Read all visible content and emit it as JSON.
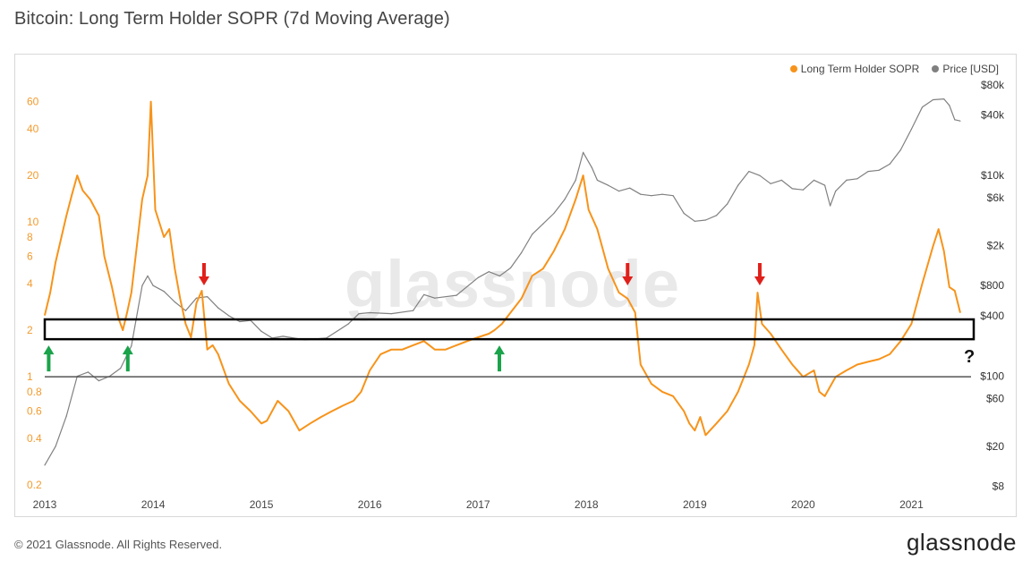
{
  "title": "Bitcoin: Long Term Holder SOPR (7d Moving Average)",
  "footer": {
    "copyright": "© 2021 Glassnode. All Rights Reserved.",
    "brand": "glassnode"
  },
  "watermark": "glassnode",
  "chart_data": {
    "type": "line",
    "title": "Bitcoin: Long Term Holder SOPR (7d Moving Average)",
    "legend_position": "top-right",
    "grid": false,
    "x_ticks": [
      "2013",
      "2014",
      "2015",
      "2016",
      "2017",
      "2018",
      "2019",
      "2020",
      "2021"
    ],
    "x_range": [
      2013.0,
      2021.55
    ],
    "y_left": {
      "scale": "log",
      "range": [
        0.18,
        80
      ],
      "tick_labels": [
        "0.2",
        "0.4",
        "0.6",
        "0.8",
        "1",
        "2",
        "4",
        "6",
        "8",
        "10",
        "20",
        "40",
        "60"
      ],
      "tick_values": [
        0.2,
        0.4,
        0.6,
        0.8,
        1,
        2,
        4,
        6,
        8,
        10,
        20,
        40,
        60
      ]
    },
    "y_right": {
      "scale": "log",
      "range": [
        7,
        85000
      ],
      "tick_labels": [
        "$8",
        "$20",
        "$60",
        "$100",
        "$400",
        "$800",
        "$2k",
        "$6k",
        "$10k",
        "$40k",
        "$80k"
      ],
      "tick_values": [
        8,
        20,
        60,
        100,
        400,
        800,
        2000,
        6000,
        10000,
        40000,
        80000
      ]
    },
    "series": [
      {
        "name": "Long Term Holder SOPR",
        "color": "#f7931a",
        "axis": "left",
        "x": [
          2013.0,
          2013.05,
          2013.1,
          2013.2,
          2013.25,
          2013.3,
          2013.35,
          2013.42,
          2013.5,
          2013.55,
          2013.62,
          2013.68,
          2013.72,
          2013.76,
          2013.8,
          2013.85,
          2013.9,
          2013.95,
          2013.98,
          2014.02,
          2014.1,
          2014.15,
          2014.2,
          2014.25,
          2014.3,
          2014.35,
          2014.4,
          2014.45,
          2014.5,
          2014.55,
          2014.6,
          2014.7,
          2014.8,
          2014.9,
          2015.0,
          2015.05,
          2015.15,
          2015.25,
          2015.35,
          2015.45,
          2015.55,
          2015.65,
          2015.75,
          2015.85,
          2015.92,
          2016.0,
          2016.1,
          2016.2,
          2016.3,
          2016.4,
          2016.5,
          2016.55,
          2016.6,
          2016.7,
          2016.8,
          2016.9,
          2017.0,
          2017.1,
          2017.15,
          2017.22,
          2017.3,
          2017.4,
          2017.5,
          2017.6,
          2017.7,
          2017.8,
          2017.9,
          2017.97,
          2018.02,
          2018.1,
          2018.2,
          2018.3,
          2018.38,
          2018.45,
          2018.5,
          2018.6,
          2018.7,
          2018.8,
          2018.9,
          2018.95,
          2019.0,
          2019.05,
          2019.1,
          2019.2,
          2019.3,
          2019.4,
          2019.5,
          2019.55,
          2019.58,
          2019.62,
          2019.7,
          2019.8,
          2019.9,
          2020.0,
          2020.1,
          2020.15,
          2020.2,
          2020.3,
          2020.4,
          2020.5,
          2020.6,
          2020.7,
          2020.8,
          2020.9,
          2021.0,
          2021.1,
          2021.2,
          2021.25,
          2021.3,
          2021.35,
          2021.4,
          2021.45
        ],
        "y": [
          2.5,
          3.5,
          5.5,
          11,
          15,
          20,
          16,
          14,
          11,
          6,
          3.8,
          2.4,
          2.0,
          2.6,
          3.5,
          7,
          14,
          20,
          60,
          12,
          8,
          9,
          5,
          3.2,
          2.2,
          1.8,
          3.0,
          3.6,
          1.5,
          1.6,
          1.4,
          0.9,
          0.7,
          0.6,
          0.5,
          0.52,
          0.7,
          0.6,
          0.45,
          0.5,
          0.55,
          0.6,
          0.65,
          0.7,
          0.8,
          1.1,
          1.4,
          1.5,
          1.5,
          1.6,
          1.7,
          1.6,
          1.5,
          1.5,
          1.6,
          1.7,
          1.8,
          1.9,
          2.0,
          2.2,
          2.6,
          3.2,
          4.5,
          5.0,
          6.5,
          9.0,
          14.0,
          20.0,
          12.0,
          9.0,
          5.0,
          3.5,
          3.2,
          2.6,
          1.2,
          0.9,
          0.8,
          0.75,
          0.6,
          0.5,
          0.45,
          0.55,
          0.42,
          0.5,
          0.6,
          0.8,
          1.2,
          1.6,
          3.5,
          2.2,
          1.9,
          1.5,
          1.2,
          1.0,
          1.1,
          0.8,
          0.75,
          1.0,
          1.1,
          1.2,
          1.25,
          1.3,
          1.4,
          1.7,
          2.2,
          4.0,
          7.0,
          9.0,
          6.5,
          3.8,
          3.6,
          2.6
        ]
      },
      {
        "name": "Price [USD]",
        "color": "#808080",
        "axis": "right",
        "x": [
          2013.0,
          2013.1,
          2013.2,
          2013.3,
          2013.4,
          2013.5,
          2013.6,
          2013.7,
          2013.8,
          2013.9,
          2013.95,
          2014.0,
          2014.1,
          2014.2,
          2014.3,
          2014.4,
          2014.5,
          2014.6,
          2014.7,
          2014.8,
          2014.9,
          2015.0,
          2015.1,
          2015.2,
          2015.4,
          2015.6,
          2015.8,
          2015.9,
          2016.0,
          2016.2,
          2016.4,
          2016.5,
          2016.6,
          2016.8,
          2017.0,
          2017.1,
          2017.2,
          2017.3,
          2017.4,
          2017.5,
          2017.6,
          2017.7,
          2017.8,
          2017.9,
          2017.97,
          2018.05,
          2018.1,
          2018.2,
          2018.3,
          2018.4,
          2018.5,
          2018.6,
          2018.7,
          2018.8,
          2018.9,
          2019.0,
          2019.1,
          2019.2,
          2019.3,
          2019.4,
          2019.5,
          2019.6,
          2019.7,
          2019.8,
          2019.9,
          2020.0,
          2020.1,
          2020.2,
          2020.25,
          2020.3,
          2020.4,
          2020.5,
          2020.6,
          2020.7,
          2020.8,
          2020.9,
          2021.0,
          2021.1,
          2021.2,
          2021.3,
          2021.35,
          2021.4,
          2021.45
        ],
        "y": [
          13,
          20,
          40,
          100,
          110,
          90,
          100,
          120,
          200,
          800,
          1000,
          800,
          700,
          550,
          450,
          600,
          620,
          480,
          400,
          350,
          360,
          280,
          240,
          250,
          230,
          240,
          330,
          420,
          430,
          420,
          450,
          650,
          600,
          640,
          960,
          1100,
          1000,
          1200,
          1700,
          2600,
          3300,
          4200,
          5800,
          9000,
          17000,
          12000,
          9000,
          8000,
          7000,
          7500,
          6500,
          6300,
          6500,
          6300,
          4200,
          3500,
          3600,
          4000,
          5200,
          8000,
          11000,
          10000,
          8300,
          9000,
          7400,
          7200,
          9000,
          8000,
          5000,
          7000,
          9000,
          9300,
          11000,
          11300,
          13000,
          18000,
          29000,
          48000,
          57000,
          58000,
          50000,
          36000,
          35000
        ]
      }
    ],
    "reference_line": {
      "axis": "left",
      "value": 1
    },
    "highlight_band": {
      "axis": "left",
      "from": 1.75,
      "to": 2.35,
      "label": "?"
    },
    "annotations": {
      "green_up_arrows_x": [
        2013.02,
        2013.75,
        2017.18
      ],
      "red_down_arrows_x": [
        2014.47,
        2018.38,
        2019.6
      ]
    }
  }
}
